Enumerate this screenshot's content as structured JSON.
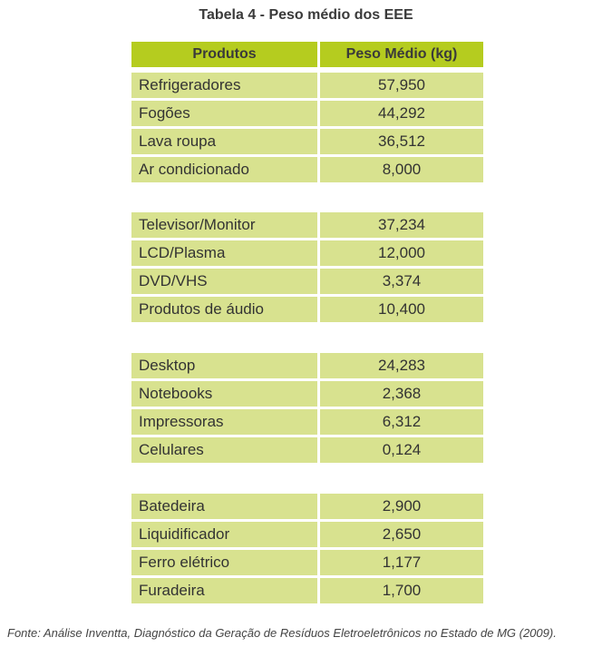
{
  "title": "Tabela 4 - Peso médio dos EEE",
  "columns": [
    "Produtos",
    "Peso Médio (kg)"
  ],
  "groups": [
    {
      "rows": [
        {
          "product": "Refrigeradores",
          "weight": "57,950"
        },
        {
          "product": "Fogões",
          "weight": "44,292"
        },
        {
          "product": "Lava roupa",
          "weight": "36,512"
        },
        {
          "product": "Ar condicionado",
          "weight": "8,000"
        }
      ]
    },
    {
      "rows": [
        {
          "product": "Televisor/Monitor",
          "weight": "37,234"
        },
        {
          "product": "LCD/Plasma",
          "weight": "12,000"
        },
        {
          "product": "DVD/VHS",
          "weight": "3,374"
        },
        {
          "product": "Produtos de áudio",
          "weight": "10,400"
        }
      ]
    },
    {
      "rows": [
        {
          "product": "Desktop",
          "weight": "24,283"
        },
        {
          "product": "Notebooks",
          "weight": "2,368"
        },
        {
          "product": "Impressoras",
          "weight": "6,312"
        },
        {
          "product": "Celulares",
          "weight": "0,124"
        }
      ]
    },
    {
      "rows": [
        {
          "product": "Batedeira",
          "weight": "2,900"
        },
        {
          "product": "Liquidificador",
          "weight": "2,650"
        },
        {
          "product": "Ferro elétrico",
          "weight": "1,177"
        },
        {
          "product": "Furadeira",
          "weight": "1,700"
        }
      ]
    }
  ],
  "source": "Fonte: Análise Inventta, Diagnóstico da Geração de Resíduos Eletroeletrônicos no Estado de MG (2009).",
  "colors": {
    "header_bg": "#b5cc1f",
    "cell_bg": "#d8e28f"
  }
}
